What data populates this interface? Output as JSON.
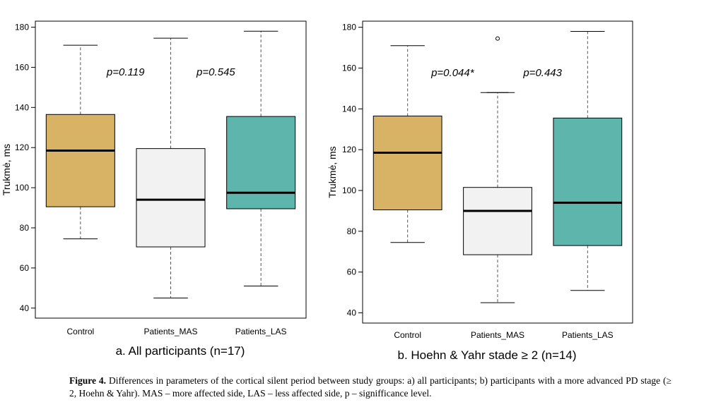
{
  "chart_data": [
    {
      "type": "box",
      "subtitle": "a. All participants (n=17)",
      "ylabel": "Trukmė, ms",
      "ylim": [
        35,
        183
      ],
      "yticks": [
        40,
        60,
        80,
        100,
        120,
        140,
        160,
        180
      ],
      "categories": [
        "Control",
        "Patients_MAS",
        "Patients_LAS"
      ],
      "colors": [
        "#D8B265",
        "#F2F2F2",
        "#5DB5AB"
      ],
      "boxes": [
        {
          "whisker_low": 74.5,
          "q1": 90.5,
          "median": 118.5,
          "q3": 136.5,
          "whisker_high": 171,
          "outliers": []
        },
        {
          "whisker_low": 45,
          "q1": 70.5,
          "median": 94,
          "q3": 119.5,
          "whisker_high": 174.5,
          "outliers": []
        },
        {
          "whisker_low": 51,
          "q1": 89.5,
          "median": 97.5,
          "q3": 135.5,
          "whisker_high": 178,
          "outliers": []
        }
      ],
      "annotations": [
        {
          "text": "p=0.119",
          "x": 0.5,
          "y": 156
        },
        {
          "text": "p=0.545",
          "x": 1.5,
          "y": 156
        }
      ],
      "brackets": []
    },
    {
      "type": "box",
      "subtitle": "b. Hoehn & Yahr stade ≥ 2 (n=14)",
      "ylabel": "Trukmė, ms",
      "ylim": [
        35,
        183
      ],
      "yticks": [
        40,
        60,
        80,
        100,
        120,
        140,
        160,
        180
      ],
      "categories": [
        "Control",
        "Patients_MAS",
        "Patients_LAS"
      ],
      "colors": [
        "#D8B265",
        "#F2F2F2",
        "#5DB5AB"
      ],
      "boxes": [
        {
          "whisker_low": 74.5,
          "q1": 90.5,
          "median": 118.5,
          "q3": 136.5,
          "whisker_high": 171,
          "outliers": []
        },
        {
          "whisker_low": 45,
          "q1": 68.5,
          "median": 90,
          "q3": 101.5,
          "whisker_high": 148,
          "outliers": [
            174.5
          ]
        },
        {
          "whisker_low": 51,
          "q1": 73,
          "median": 94,
          "q3": 135.5,
          "whisker_high": 178,
          "outliers": []
        }
      ],
      "annotations": [
        {
          "text": "p=0.044*",
          "x": 0.5,
          "y": 156
        },
        {
          "text": "p=0.443",
          "x": 1.5,
          "y": 156
        }
      ],
      "brackets": [
        {
          "x1": 0.88,
          "x2": 1.12,
          "y": 148
        }
      ]
    }
  ],
  "caption": {
    "label": "Figure 4.",
    "text": " Differences in parameters of the cortical silent period between study groups: a) all participants; b) participants with a more advanced PD stage (≥ 2, Hoehn & Yahr). MAS – more affected side, LAS – less affected side, p – signifficance level."
  }
}
